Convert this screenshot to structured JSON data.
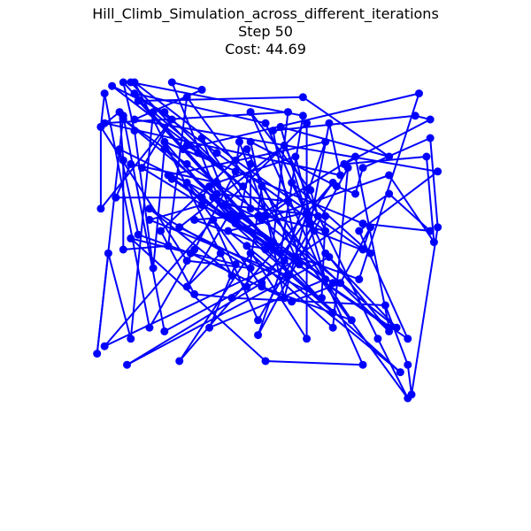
{
  "chart_data": {
    "type": "line",
    "title": "Hill_Climb_Simulation_across_different_iterations",
    "subtitle": "Step 50",
    "cost_label": "Cost: 44.69",
    "axes_visible": false,
    "grid": false,
    "xlim": [
      0,
      100
    ],
    "ylim": [
      0,
      100
    ],
    "series": [
      {
        "color": "#0000ff",
        "marker": "circle",
        "closed": true,
        "points": [
          [
            5,
            97
          ],
          [
            4,
            88
          ],
          [
            4,
            66
          ],
          [
            23,
            90
          ],
          [
            15,
            77
          ],
          [
            57,
            51
          ],
          [
            50,
            87
          ],
          [
            88,
            91
          ],
          [
            92,
            90
          ],
          [
            69,
            78
          ],
          [
            91,
            80
          ],
          [
            93,
            57
          ],
          [
            81,
            75
          ],
          [
            47,
            63
          ],
          [
            83,
            34
          ],
          [
            64,
            54
          ],
          [
            48,
            89
          ],
          [
            13,
            97
          ],
          [
            35,
            81
          ],
          [
            64,
            60
          ],
          [
            48,
            64
          ],
          [
            27,
            78
          ],
          [
            10,
            90
          ],
          [
            56,
            52
          ],
          [
            21,
            33
          ],
          [
            10,
            91
          ],
          [
            3,
            27
          ],
          [
            6,
            54
          ],
          [
            12,
            31
          ],
          [
            18,
            92
          ],
          [
            42,
            72
          ],
          [
            7,
            99
          ],
          [
            21,
            92
          ],
          [
            81,
            33
          ],
          [
            65,
            53
          ],
          [
            11,
            24
          ],
          [
            47,
            46
          ],
          [
            66,
            73
          ],
          [
            25,
            25
          ],
          [
            44,
            54
          ],
          [
            66,
            34
          ],
          [
            70,
            77
          ],
          [
            46,
            32
          ],
          [
            64,
            84
          ],
          [
            22,
            75
          ],
          [
            81,
            34
          ],
          [
            72,
            80
          ],
          [
            46,
            64
          ],
          [
            39,
            64
          ],
          [
            66,
            46
          ],
          [
            34,
            69
          ],
          [
            53,
            52
          ],
          [
            5,
            29
          ],
          [
            34,
            63
          ],
          [
            46,
            36
          ],
          [
            62,
            64
          ],
          [
            60,
            71
          ],
          [
            44,
            92
          ],
          [
            74,
            24
          ],
          [
            48,
            25
          ],
          [
            12,
            58
          ],
          [
            40,
            51
          ],
          [
            33,
            34
          ],
          [
            64,
            47
          ],
          [
            52,
            88
          ],
          [
            81,
            80
          ],
          [
            58,
            96
          ],
          [
            14,
            95
          ],
          [
            66,
            38
          ],
          [
            27,
            73
          ],
          [
            47,
            45
          ],
          [
            71,
            36
          ],
          [
            47,
            72
          ],
          [
            43,
            45
          ],
          [
            17,
            66
          ],
          [
            44,
            50
          ],
          [
            27,
            52
          ],
          [
            4,
            88
          ],
          [
            9,
            92
          ],
          [
            10,
            79
          ],
          [
            10,
            55
          ],
          [
            22,
            56
          ],
          [
            27,
            96
          ],
          [
            86,
            15
          ],
          [
            78,
            31
          ],
          [
            53,
            83
          ],
          [
            25,
            61
          ],
          [
            63,
            42
          ],
          [
            64,
            64
          ],
          [
            37,
            67
          ],
          [
            59,
            89
          ],
          [
            59,
            31
          ],
          [
            43,
            56
          ],
          [
            50,
            55
          ],
          [
            23,
            74
          ],
          [
            86,
            31
          ],
          [
            73,
            60
          ],
          [
            94,
            76
          ],
          [
            13,
            90
          ],
          [
            31,
            98
          ],
          [
            23,
            100
          ],
          [
            35,
            70
          ],
          [
            54,
            68
          ],
          [
            47,
            63
          ],
          [
            9,
            82
          ],
          [
            14,
            59
          ],
          [
            28,
            54
          ],
          [
            55,
            41
          ],
          [
            68,
            46
          ],
          [
            76,
            61
          ],
          [
            74,
            55
          ],
          [
            40,
            79
          ],
          [
            13,
            100
          ],
          [
            39,
            48
          ],
          [
            36,
            54
          ],
          [
            27,
            45
          ],
          [
            38,
            64
          ],
          [
            21,
            84
          ],
          [
            74,
            62
          ],
          [
            92,
            60
          ],
          [
            81,
            70
          ],
          [
            56,
            53
          ],
          [
            43,
            82
          ],
          [
            20,
            60
          ],
          [
            29,
            43
          ],
          [
            39,
            42
          ],
          [
            80,
            40
          ],
          [
            86,
            24
          ],
          [
            87,
            16
          ],
          [
            94,
            61
          ],
          [
            92,
            85
          ],
          [
            74,
            77
          ],
          [
            72,
            70
          ],
          [
            67,
            72
          ],
          [
            44,
            84
          ],
          [
            53,
            42
          ],
          [
            59,
            65
          ],
          [
            38,
            60
          ],
          [
            84,
            22
          ],
          [
            48,
            55
          ],
          [
            21,
            82
          ],
          [
            18,
            50
          ],
          [
            13,
            87
          ],
          [
            10,
            100
          ],
          [
            52,
            54
          ],
          [
            58,
            91
          ],
          [
            12,
            100
          ],
          [
            30,
            81
          ],
          [
            27,
            83
          ],
          [
            26,
            82
          ],
          [
            89,
            97
          ],
          [
            73,
            47
          ],
          [
            29,
            63
          ],
          [
            41,
            64
          ],
          [
            44,
            78
          ],
          [
            44,
            66
          ],
          [
            31,
            85
          ],
          [
            40,
            62
          ],
          [
            33,
            72
          ],
          [
            31,
            69
          ],
          [
            8,
            69
          ],
          [
            12,
            78
          ],
          [
            35,
            73
          ],
          [
            56,
            80
          ],
          [
            61,
            60
          ],
          [
            76,
            54
          ],
          [
            55,
            73
          ],
          [
            60,
            62
          ],
          [
            65,
            89
          ],
          [
            68,
            75
          ],
          [
            5,
            89
          ],
          [
            54,
            92
          ],
          [
            50,
            57
          ],
          [
            31,
            67
          ],
          [
            17,
            63
          ],
          [
            54,
            48
          ],
          [
            41,
            84
          ],
          [
            40,
            76
          ],
          [
            29,
            55
          ],
          [
            17,
            34
          ]
        ]
      }
    ]
  }
}
